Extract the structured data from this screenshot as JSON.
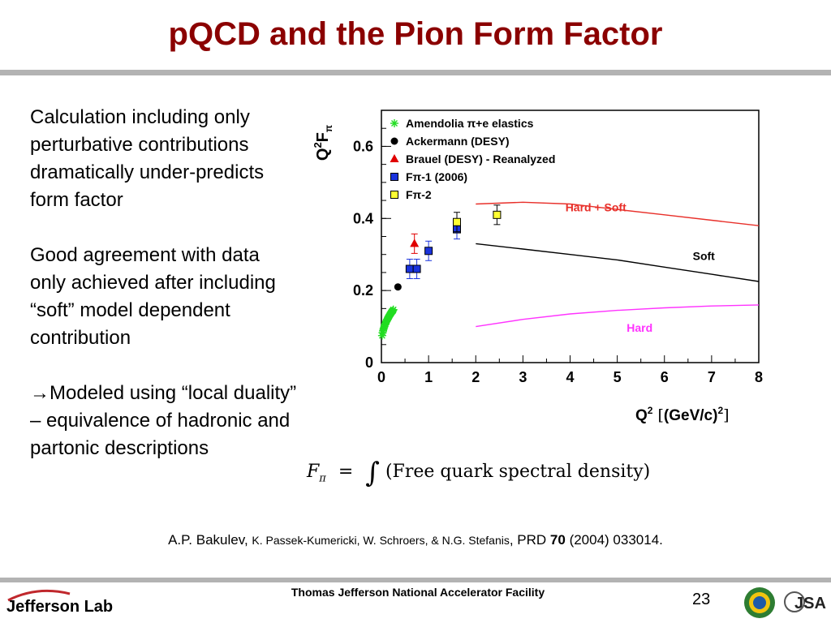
{
  "slide": {
    "title": "pQCD and the Pion Form Factor",
    "paragraphs": [
      {
        "prefix": "",
        "text": "Calculation including only perturbative contributions dramatically under-predicts form factor"
      },
      {
        "prefix": "",
        "text": "Good agreement with data only achieved after including “soft” model dependent contribution"
      },
      {
        "prefix": "→",
        "text": "Modeled using “local duality” – equivalence of hadronic and partonic descriptions"
      }
    ],
    "formula": {
      "lhs": "F",
      "subscript": "π",
      "equals": "=",
      "integral": "∫",
      "rhs": "(Free quark spectral density)"
    },
    "citation": {
      "author_main": "A.P. Bakulev, ",
      "authors_small": "K. Passek-Kumericki, W. Schroers, & N.G. Stefanis",
      "journal": ", PRD ",
      "volume": "70",
      "rest": " (2004) 033014."
    },
    "footer": {
      "facility": "Thomas Jefferson National Accelerator Facility",
      "page_number": "23",
      "logo_text": "Jefferson Lab",
      "jsa_text": "JSA"
    }
  },
  "colors": {
    "title": "#8b0000",
    "hard_soft": "#e8302a",
    "soft": "#000000",
    "hard": "#ff33ff",
    "amendolia": "#22dd22",
    "brauel": "#e00000",
    "fpi1": "#1a33dd",
    "fpi2": "#ffff33"
  },
  "chart_data": {
    "type": "scatter",
    "title": "",
    "ylabel": "Q²F_π",
    "xlabel": "Q² [(GeV/c)²]",
    "xlim": [
      0,
      8
    ],
    "ylim": [
      0,
      0.7
    ],
    "xticks": [
      "0",
      "1",
      "2",
      "3",
      "4",
      "5",
      "6",
      "7",
      "8"
    ],
    "yticks": [
      "0",
      "0.2",
      "0.4",
      "0.6"
    ],
    "legend_position": "top-left",
    "series": [
      {
        "name": "Amendolia π+e elastics",
        "marker": "star",
        "color": "#22dd22",
        "x": [
          0.015,
          0.025,
          0.035,
          0.045,
          0.055,
          0.065,
          0.075,
          0.085,
          0.095,
          0.105,
          0.115,
          0.125,
          0.135,
          0.145,
          0.155,
          0.165,
          0.175,
          0.185,
          0.195,
          0.205,
          0.215,
          0.225,
          0.235,
          0.245,
          0.253
        ],
        "y": [
          0.075,
          0.083,
          0.088,
          0.093,
          0.097,
          0.101,
          0.105,
          0.108,
          0.112,
          0.114,
          0.117,
          0.12,
          0.122,
          0.125,
          0.127,
          0.129,
          0.132,
          0.134,
          0.136,
          0.138,
          0.14,
          0.142,
          0.143,
          0.145,
          0.147
        ]
      },
      {
        "name": "Ackermann (DESY)",
        "marker": "circle",
        "color": "#000000",
        "x": [
          0.35
        ],
        "y": [
          0.21
        ]
      },
      {
        "name": "Brauel (DESY) - Reanalyzed",
        "marker": "triangle",
        "color": "#e00000",
        "x": [
          0.7
        ],
        "y": [
          0.33
        ]
      },
      {
        "name": "Fπ-1 (2006)",
        "marker": "square",
        "color": "#1a33dd",
        "x": [
          0.6,
          0.75,
          1.0,
          1.6
        ],
        "y": [
          0.26,
          0.26,
          0.31,
          0.37
        ]
      },
      {
        "name": "Fπ-2",
        "marker": "square",
        "color": "#ffff33",
        "x": [
          1.6,
          2.45
        ],
        "y": [
          0.39,
          0.41
        ]
      },
      {
        "name": "Hard + Soft",
        "line": true,
        "color": "#e8302a",
        "x": [
          2,
          3,
          4,
          5,
          6,
          7,
          8
        ],
        "y": [
          0.44,
          0.445,
          0.44,
          0.425,
          0.41,
          0.395,
          0.38
        ]
      },
      {
        "name": "Soft",
        "line": true,
        "color": "#000000",
        "x": [
          2,
          3,
          4,
          5,
          6,
          7,
          8
        ],
        "y": [
          0.33,
          0.315,
          0.3,
          0.285,
          0.265,
          0.245,
          0.225
        ]
      },
      {
        "name": "Hard",
        "line": true,
        "color": "#ff33ff",
        "x": [
          2,
          3,
          4,
          5,
          6,
          7,
          8
        ],
        "y": [
          0.1,
          0.12,
          0.135,
          0.145,
          0.152,
          0.157,
          0.16
        ]
      }
    ]
  }
}
